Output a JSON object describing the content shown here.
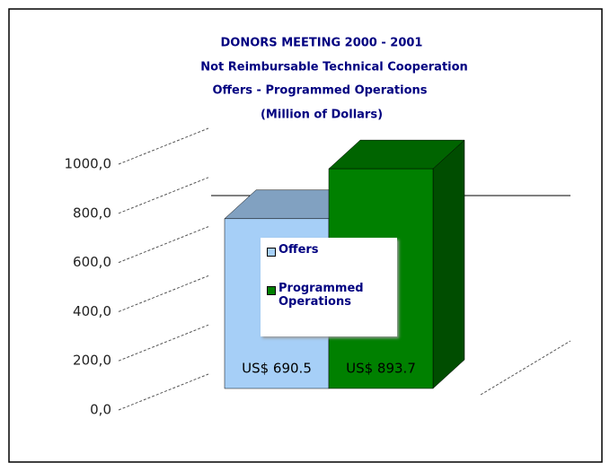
{
  "chart_data": {
    "type": "bar3d",
    "title": "DONORS MEETING 2000 - 2001",
    "subtitle": [
      "Not Reimbursable Technical Cooperation",
      "Offers - Programmed Operations",
      "(Million of Dollars)"
    ],
    "series": [
      {
        "name": "Offers",
        "color": "#a6cff7",
        "values": [
          690.5
        ],
        "value_labels": [
          "US$ 690.5"
        ]
      },
      {
        "name": "Programmed Operations",
        "color": "#008000",
        "values": [
          893.7
        ],
        "value_labels": [
          "US$ 893.7"
        ]
      }
    ],
    "ylim": [
      0,
      1000
    ],
    "yticks": [
      {
        "value": 0,
        "label": "0,0"
      },
      {
        "value": 200,
        "label": "200,0"
      },
      {
        "value": 400,
        "label": "400,0"
      },
      {
        "value": 600,
        "label": "600,0"
      },
      {
        "value": 800,
        "label": "800,0"
      },
      {
        "value": 1000,
        "label": "1000,0"
      }
    ],
    "grid": true
  }
}
